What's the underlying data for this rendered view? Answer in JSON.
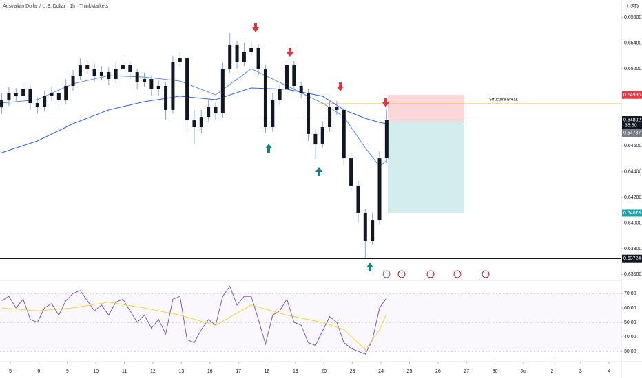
{
  "chart_data": [
    {
      "type": "candlestick",
      "title": "Australian Dollar / U.S. Dollar · 1h · ThinkMarkets",
      "currency": "USD",
      "xlim": [
        -0.362,
        21.43
      ],
      "ylim": [
        0.6357,
        0.65735
      ],
      "yticks": [
        {
          "value": 0.656,
          "label": "0.65600"
        },
        {
          "value": 0.654,
          "label": "0.65400"
        },
        {
          "value": 0.652,
          "label": "0.65200"
        },
        {
          "value": 0.646,
          "label": "0.64600"
        },
        {
          "value": 0.644,
          "label": "0.64400"
        },
        {
          "value": 0.642,
          "label": "0.64200"
        },
        {
          "value": 0.64,
          "label": "0.64000"
        },
        {
          "value": 0.638,
          "label": "0.63800"
        },
        {
          "value": 0.636,
          "label": "0.63600"
        }
      ],
      "body_color": "#131722",
      "wick_color": "#7fa3ec",
      "x": [
        -0.3,
        -0.05,
        0.2,
        0.45,
        0.7,
        0.95,
        1.2,
        1.45,
        1.7,
        1.95,
        2.2,
        2.45,
        2.7,
        2.95,
        3.2,
        3.45,
        3.7,
        3.95,
        4.2,
        4.45,
        4.7,
        4.95,
        5.2,
        5.45,
        5.7,
        5.95,
        6.2,
        6.45,
        6.7,
        6.95,
        7.2,
        7.45,
        7.7,
        7.95,
        8.2,
        8.45,
        8.7,
        8.95,
        9.2,
        9.45,
        9.7,
        9.95,
        10.2,
        10.45,
        10.7,
        10.95,
        11.2,
        11.45,
        11.7,
        11.95,
        12.2,
        12.45,
        12.7,
        12.95,
        13.2
      ],
      "ohlc": [
        [
          0.649,
          0.6501,
          0.6485,
          0.6496
        ],
        [
          0.6496,
          0.6506,
          0.6491,
          0.65013
        ],
        [
          0.65013,
          0.6505,
          0.6494,
          0.64987
        ],
        [
          0.64987,
          0.6509,
          0.6495,
          0.6504
        ],
        [
          0.6504,
          0.6507,
          0.6488,
          0.64933
        ],
        [
          0.64933,
          0.6498,
          0.6485,
          0.64906
        ],
        [
          0.64906,
          0.6503,
          0.6487,
          0.64987
        ],
        [
          0.64987,
          0.6506,
          0.6495,
          0.65013
        ],
        [
          0.65013,
          0.6505,
          0.6491,
          0.6496
        ],
        [
          0.6496,
          0.6512,
          0.6492,
          0.65067
        ],
        [
          0.65067,
          0.6519,
          0.6503,
          0.65147
        ],
        [
          0.65147,
          0.6528,
          0.6511,
          0.65227
        ],
        [
          0.65227,
          0.6526,
          0.6516,
          0.652
        ],
        [
          0.652,
          0.6524,
          0.651,
          0.65147
        ],
        [
          0.65147,
          0.6522,
          0.6511,
          0.65174
        ],
        [
          0.65174,
          0.6521,
          0.6507,
          0.6512
        ],
        [
          0.6512,
          0.6525,
          0.6509,
          0.652
        ],
        [
          0.652,
          0.6529,
          0.6517,
          0.65227
        ],
        [
          0.65227,
          0.6526,
          0.6512,
          0.65174
        ],
        [
          0.65174,
          0.652,
          0.6504,
          0.65094
        ],
        [
          0.65094,
          0.6517,
          0.6506,
          0.6512
        ],
        [
          0.6512,
          0.6515,
          0.6499,
          0.6504
        ],
        [
          0.6504,
          0.6511,
          0.6499,
          0.65067
        ],
        [
          0.65067,
          0.651,
          0.648,
          0.6488
        ],
        [
          0.6488,
          0.653,
          0.6485,
          0.65254
        ],
        [
          0.65254,
          0.6533,
          0.6522,
          0.65281
        ],
        [
          0.65281,
          0.653,
          0.647,
          0.64799
        ],
        [
          0.64799,
          0.6488,
          0.6462,
          0.64746
        ],
        [
          0.64746,
          0.6488,
          0.647,
          0.64826
        ],
        [
          0.64826,
          0.6496,
          0.6479,
          0.64906
        ],
        [
          0.64906,
          0.6494,
          0.648,
          0.64853
        ],
        [
          0.64853,
          0.6525,
          0.6482,
          0.652
        ],
        [
          0.652,
          0.6548,
          0.6517,
          0.65388
        ],
        [
          0.65388,
          0.6542,
          0.652,
          0.65254
        ],
        [
          0.65254,
          0.654,
          0.6522,
          0.65334
        ],
        [
          0.65334,
          0.6542,
          0.653,
          0.65361
        ],
        [
          0.65361,
          0.6539,
          0.6515,
          0.652
        ],
        [
          0.652,
          0.6523,
          0.647,
          0.64746
        ],
        [
          0.64746,
          0.6501,
          0.6471,
          0.6496
        ],
        [
          0.6496,
          0.6508,
          0.6492,
          0.6504
        ],
        [
          0.6504,
          0.6529,
          0.65,
          0.65227
        ],
        [
          0.65227,
          0.6526,
          0.6502,
          0.65067
        ],
        [
          0.65067,
          0.651,
          0.6497,
          0.65013
        ],
        [
          0.65013,
          0.6504,
          0.6464,
          0.64693
        ],
        [
          0.64693,
          0.6473,
          0.645,
          0.64612
        ],
        [
          0.64612,
          0.6479,
          0.6458,
          0.64746
        ],
        [
          0.64746,
          0.6496,
          0.6471,
          0.64906
        ],
        [
          0.64906,
          0.6495,
          0.6484,
          0.6488
        ],
        [
          0.6488,
          0.6491,
          0.6445,
          0.64505
        ],
        [
          0.64505,
          0.6454,
          0.6424,
          0.64292
        ],
        [
          0.64292,
          0.6433,
          0.64,
          0.64078
        ],
        [
          0.64078,
          0.6411,
          0.63724,
          0.63864
        ],
        [
          0.63864,
          0.6408,
          0.6383,
          0.64024
        ],
        [
          0.64024,
          0.6456,
          0.6399,
          0.64505
        ],
        [
          0.64505,
          0.6488,
          0.6447,
          0.64802
        ]
      ],
      "series": [
        {
          "color": "#5b8def",
          "x": [
            -0.3,
            0.95,
            2.2,
            3.45,
            4.7,
            5.95,
            7.2,
            8.45,
            9.7,
            10.95,
            11.7,
            12.45,
            12.95,
            13.2
          ],
          "values": [
            0.64933,
            0.6496,
            0.65083,
            0.65147,
            0.65136,
            0.65104,
            0.64997,
            0.652,
            0.65067,
            0.64933,
            0.64826,
            0.64586,
            0.64441,
            0.64489
          ]
        },
        {
          "color": "#2962ff",
          "x": [
            -0.3,
            0.95,
            2.2,
            3.45,
            4.7,
            5.95,
            7.2,
            8.45,
            9.7,
            10.95,
            11.7,
            12.45,
            12.95,
            13.2
          ],
          "values": [
            0.64548,
            0.64639,
            0.64773,
            0.6488,
            0.64944,
            0.64987,
            0.6496,
            0.65051,
            0.6504,
            0.64987,
            0.6488,
            0.64815,
            0.64783,
            0.64773
          ]
        }
      ],
      "last_price": 0.64802,
      "countdown": "35:50",
      "position": {
        "x_start": 13.24,
        "x_end": 15.92,
        "stop": 0.64996,
        "entry": 0.64787,
        "target": 0.64078,
        "stop_color": "#f23645",
        "entry_color": "#787b86",
        "target_color": "#22a2a8"
      },
      "hlines": [
        {
          "value": 0.64928,
          "label": "Structure Break",
          "color": "#f5a623",
          "x_start": 10.82
        },
        {
          "value": 0.63724,
          "color": "#131722",
          "x_start": -0.362
        }
      ]
    },
    {
      "type": "line",
      "xlim": [
        -0.362,
        21.43
      ],
      "ylim": [
        25.7,
        78.1
      ],
      "yticks": [
        {
          "value": 70,
          "label": "70.00"
        },
        {
          "value": 60,
          "label": "60.00"
        },
        {
          "value": 50,
          "label": "50.00"
        },
        {
          "value": 40,
          "label": "40.00"
        },
        {
          "value": 30,
          "label": "30.00"
        }
      ],
      "levels": [
        70,
        50,
        30
      ],
      "xticks": [
        {
          "value": 0,
          "label": "5"
        },
        {
          "value": 1,
          "label": "6"
        },
        {
          "value": 2,
          "label": "9"
        },
        {
          "value": 3,
          "label": "10"
        },
        {
          "value": 4,
          "label": "11"
        },
        {
          "value": 5,
          "label": "12"
        },
        {
          "value": 6,
          "label": "13"
        },
        {
          "value": 7,
          "label": "16"
        },
        {
          "value": 8,
          "label": "17"
        },
        {
          "value": 9,
          "label": "18"
        },
        {
          "value": 10,
          "label": "19"
        },
        {
          "value": 11,
          "label": "20"
        },
        {
          "value": 12,
          "label": "23"
        },
        {
          "value": 13,
          "label": "24"
        },
        {
          "value": 14,
          "label": "25"
        },
        {
          "value": 15,
          "label": "26"
        },
        {
          "value": 16,
          "label": "27"
        },
        {
          "value": 17,
          "label": "30"
        },
        {
          "value": 18,
          "label": "Jul"
        },
        {
          "value": 19,
          "label": "2"
        },
        {
          "value": 20,
          "label": "3"
        },
        {
          "value": 21,
          "label": "4"
        }
      ],
      "series": [
        {
          "color": "#7e57c2",
          "x": [
            -0.3,
            -0.05,
            0.2,
            0.45,
            0.7,
            0.95,
            1.2,
            1.45,
            1.7,
            1.95,
            2.2,
            2.45,
            2.7,
            2.95,
            3.2,
            3.45,
            3.7,
            3.95,
            4.2,
            4.45,
            4.7,
            4.95,
            5.2,
            5.45,
            5.7,
            5.95,
            6.2,
            6.45,
            6.7,
            6.95,
            7.2,
            7.45,
            7.7,
            7.95,
            8.2,
            8.45,
            8.7,
            8.95,
            9.2,
            9.45,
            9.7,
            9.95,
            10.2,
            10.45,
            10.7,
            10.95,
            11.2,
            11.45,
            11.7,
            11.95,
            12.2,
            12.45,
            12.7,
            12.95,
            13.2
          ],
          "values": [
            65,
            68,
            60,
            66,
            52,
            50,
            60,
            63,
            55,
            65,
            70,
            72,
            65,
            58,
            62,
            55,
            64,
            66,
            58,
            50,
            55,
            46,
            52,
            42,
            66,
            68,
            38,
            36,
            45,
            52,
            48,
            68,
            75,
            62,
            68,
            68,
            52,
            35,
            55,
            58,
            66,
            50,
            48,
            36,
            34,
            44,
            54,
            50,
            36,
            32,
            30,
            28,
            38,
            60,
            67
          ]
        },
        {
          "color": "#f5d33b",
          "x": [
            -0.3,
            0.95,
            2.2,
            3.45,
            4.7,
            5.95,
            7.2,
            8.45,
            9.7,
            10.95,
            11.7,
            12.45,
            12.95,
            13.2
          ],
          "values": [
            60,
            58,
            60,
            64,
            60,
            55,
            48,
            62,
            55,
            50,
            45,
            31,
            45,
            56
          ]
        }
      ]
    }
  ]
}
